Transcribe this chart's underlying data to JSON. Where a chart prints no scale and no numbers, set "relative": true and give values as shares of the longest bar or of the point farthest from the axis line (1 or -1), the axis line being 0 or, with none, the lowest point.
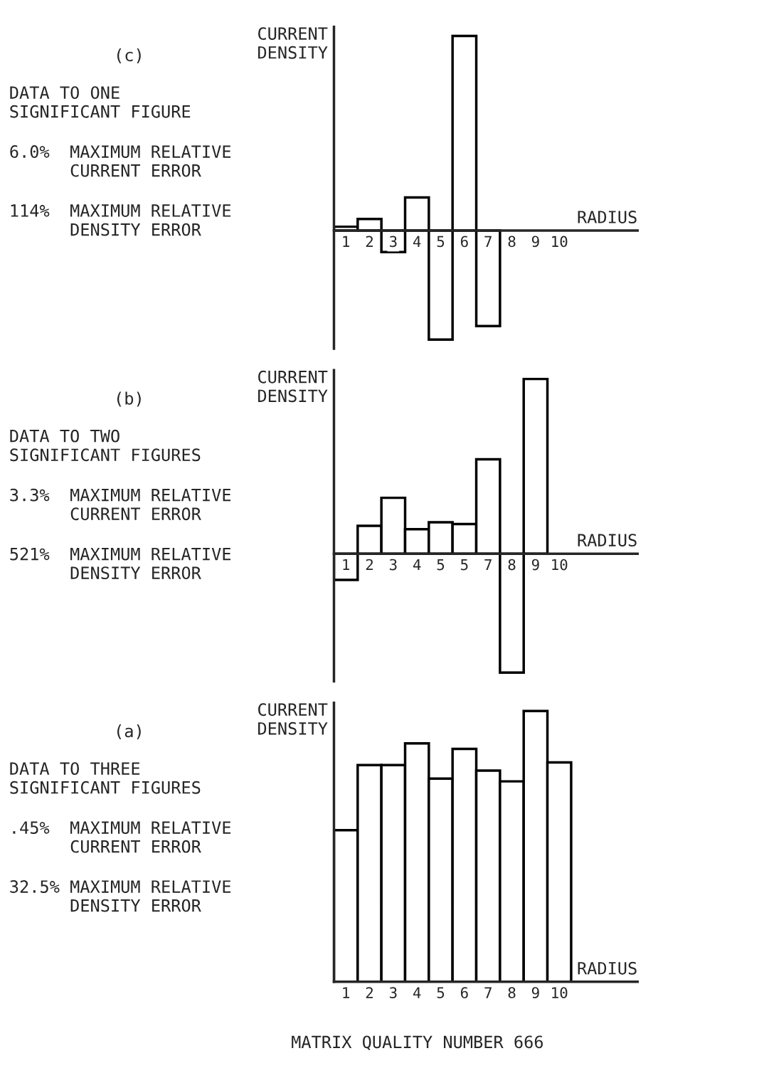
{
  "chart_data": [
    {
      "type": "bar",
      "ylabel": "CURRENT\nDENSITY",
      "xlabel": "RADIUS",
      "relative": true,
      "annotations": [
        "(c)",
        "DATA TO ONE\nSIGNIFICANT FIGURE",
        "6.0%  MAXIMUM RELATIVE\n      CURRENT ERROR",
        "114%  MAXIMUM RELATIVE\n      DENSITY ERROR"
      ],
      "categories": [
        "1",
        "2",
        "3",
        "4",
        "5",
        "6",
        "7",
        "8",
        "9",
        "10"
      ],
      "series": [
        {
          "color": "#ffffff",
          "values": [
            0.02,
            0.06,
            -0.11,
            0.17,
            -0.56,
            1,
            -0.49,
            0,
            0,
            0
          ]
        }
      ]
    },
    {
      "type": "bar",
      "ylabel": "CURRENT\nDENSITY",
      "xlabel": "RADIUS",
      "relative": true,
      "annotations": [
        "(b)",
        "DATA TO TWO\nSIGNIFICANT FIGURES",
        "3.3%  MAXIMUM RELATIVE\n      CURRENT ERROR",
        "521%  MAXIMUM RELATIVE\n      DENSITY ERROR"
      ],
      "categories": [
        "1",
        "2",
        "3",
        "4",
        "5",
        "5",
        "7",
        "8",
        "9",
        "10"
      ],
      "series": [
        {
          "color": "#ffffff",
          "values": [
            -0.15,
            0.16,
            0.32,
            0.14,
            0.18,
            0.17,
            0.54,
            -0.68,
            1,
            0
          ]
        }
      ]
    },
    {
      "type": "bar",
      "ylabel": "CURRENT\nDENSITY",
      "xlabel": "RADIUS",
      "relative": true,
      "annotations": [
        "(a)",
        "DATA TO THREE\nSIGNIFICANT FIGURES",
        ".45%  MAXIMUM RELATIVE\n      CURRENT ERROR",
        "32.5% MAXIMUM RELATIVE\n      DENSITY ERROR",
        "MATRIX QUALITY NUMBER 666"
      ],
      "categories": [
        "1",
        "2",
        "3",
        "4",
        "5",
        "6",
        "7",
        "8",
        "9",
        "10"
      ],
      "series": [
        {
          "color": "#ffffff",
          "values": [
            0.56,
            0.8,
            0.8,
            0.88,
            0.75,
            0.86,
            0.78,
            0.74,
            1,
            0.81
          ]
        }
      ]
    }
  ]
}
